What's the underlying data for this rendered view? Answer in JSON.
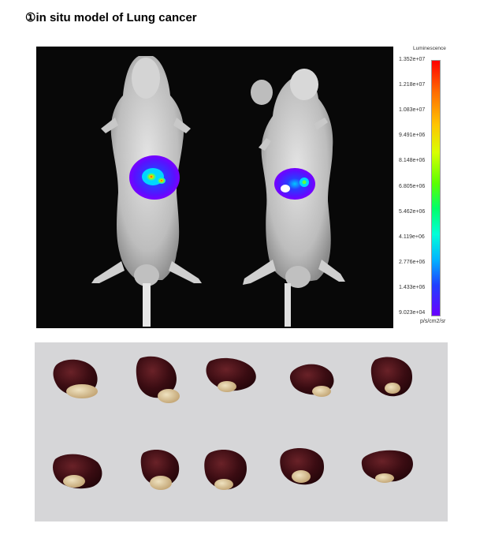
{
  "figure": {
    "title": "①in situ model of Lung cancer"
  },
  "ivis_image": {
    "scale_title": "Luminescence",
    "scale_unit": "p/s/cm2/sr",
    "scale_ticks": [
      "1.352e+07",
      "1.218e+07",
      "1.083e+07",
      "9.491e+06",
      "8.148e+06",
      "6.805e+06",
      "5.462e+06",
      "4.119e+06",
      "2.776e+06",
      "1.433e+06",
      "9.023e+04"
    ]
  },
  "organs_photo": {
    "rows": 2,
    "organs_per_row": 5
  }
}
